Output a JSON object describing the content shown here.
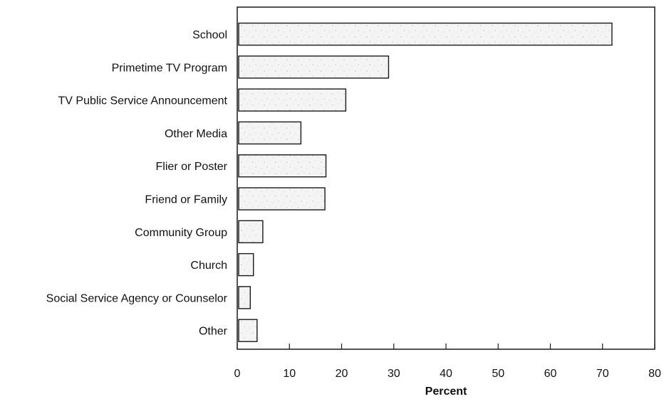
{
  "chart_data": {
    "type": "bar",
    "orientation": "horizontal",
    "title": "",
    "xlabel": "Percent",
    "ylabel": "",
    "xlim": [
      0,
      80
    ],
    "x_ticks": [
      0,
      10,
      20,
      30,
      40,
      50,
      60,
      70,
      80
    ],
    "grid": false,
    "legend": "none",
    "categories": [
      "School",
      "Primetime TV Program",
      "TV Public Service Announcement",
      "Other Media",
      "Flier or Poster",
      "Friend or Family",
      "Community Group",
      "Church",
      "Social Service Agency or Counselor",
      "Other"
    ],
    "values": [
      71.8,
      29.0,
      20.8,
      12.2,
      17.0,
      16.8,
      4.9,
      3.1,
      2.5,
      3.8
    ],
    "bar_fill": "#f2f2f2",
    "bar_stroke": "#1a1a1a",
    "axis_color": "#1a1a1a"
  }
}
